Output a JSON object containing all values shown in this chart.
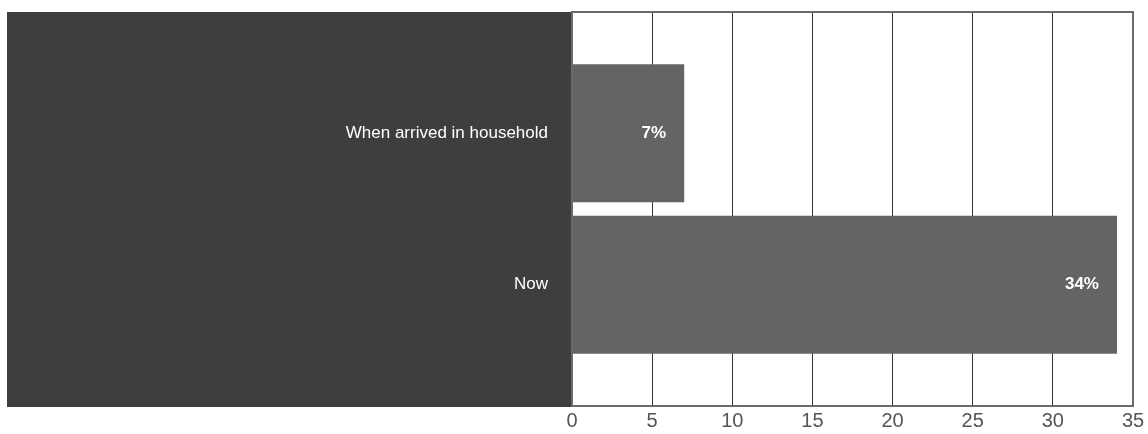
{
  "chart_data": {
    "type": "bar",
    "orientation": "horizontal",
    "categories": [
      "When arrived in household",
      "Now"
    ],
    "values": [
      7,
      34
    ],
    "color": "#636466",
    "value_labels": [
      "7%",
      "34%"
    ],
    "xlim": [
      0,
      35
    ],
    "xticks": [
      0,
      5,
      10,
      15,
      20,
      25,
      30,
      35
    ],
    "grid": "x"
  }
}
